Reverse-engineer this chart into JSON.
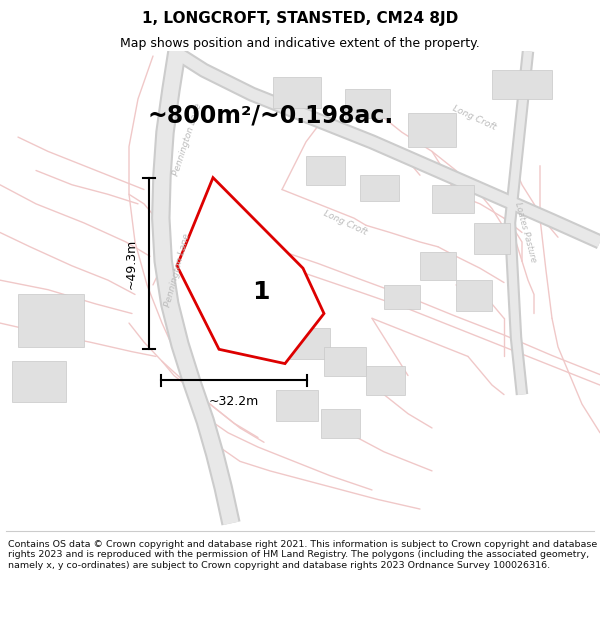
{
  "title": "1, LONGCROFT, STANSTED, CM24 8JD",
  "subtitle": "Map shows position and indicative extent of the property.",
  "area_label": "~800m²/~0.198ac.",
  "plot_number": "1",
  "dim_width": "~32.2m",
  "dim_height": "~49.3m",
  "map_bg": "#f7f7f7",
  "road_color": "#f0c8c8",
  "road_outline_color": "#e0a0a0",
  "building_color": "#e0e0e0",
  "building_edge_color": "#c8c8c8",
  "road_label_color": "#bbbbbb",
  "plot_outline_color": "#dd0000",
  "plot_fill_color": "#ffffff",
  "footer_text": "Contains OS data © Crown copyright and database right 2021. This information is subject to Crown copyright and database rights 2023 and is reproduced with the permission of HM Land Registry. The polygons (including the associated geometry, namely x, y co-ordinates) are subject to Crown copyright and database rights 2023 Ordnance Survey 100026316.",
  "figsize": [
    6.0,
    6.25
  ],
  "dpi": 100,
  "title_fontsize": 11,
  "subtitle_fontsize": 9,
  "area_fontsize": 17,
  "plot_num_fontsize": 18,
  "dim_fontsize": 9,
  "footer_fontsize": 6.8
}
